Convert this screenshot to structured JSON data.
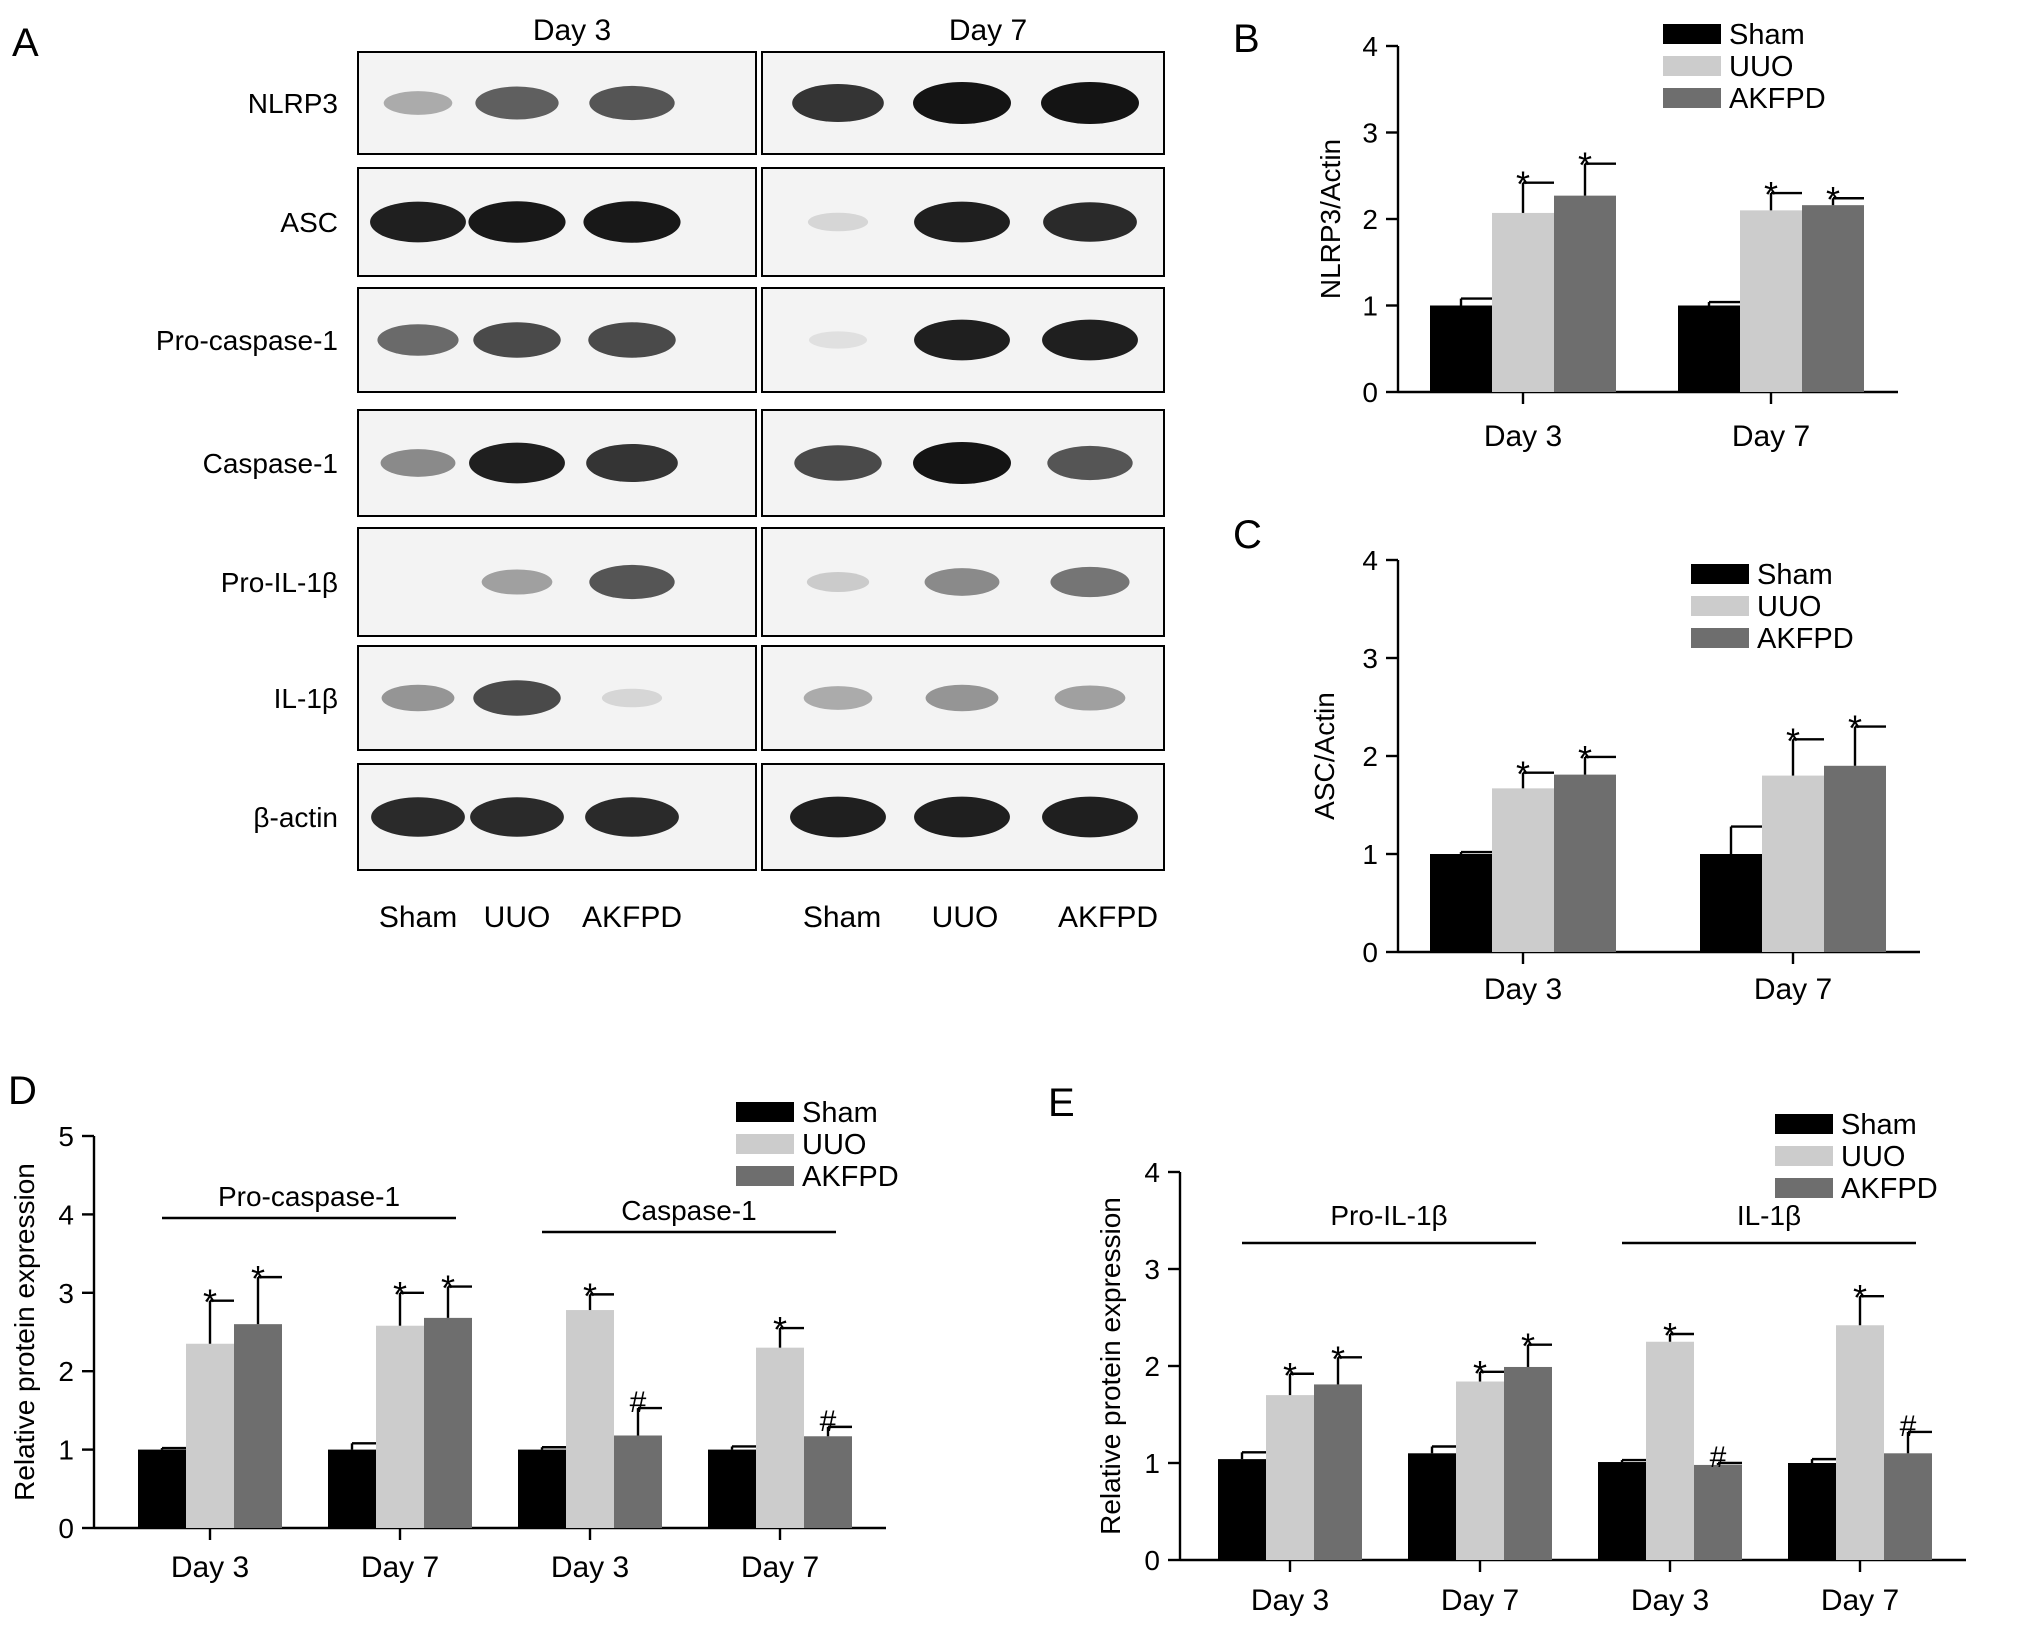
{
  "panels": {
    "a": {
      "letter": "A",
      "day_labels": [
        "Day 3",
        "Day 7"
      ],
      "rows": [
        "NLRP3",
        "ASC",
        "Pro-caspase-1",
        "Caspase-1",
        "Pro-IL-1β",
        "IL-1β",
        "β-actin"
      ],
      "lanes": [
        "Sham",
        "UUO",
        "AKFPD",
        "Sham",
        "UUO",
        "AKFPD"
      ],
      "band_intensity": [
        [
          0.3,
          0.65,
          0.7,
          0.85,
          1.0,
          1.0
        ],
        [
          0.95,
          0.98,
          0.98,
          0.1,
          0.95,
          0.9
        ],
        [
          0.6,
          0.75,
          0.75,
          0.05,
          0.95,
          0.95
        ],
        [
          0.45,
          0.95,
          0.85,
          0.75,
          1.0,
          0.7
        ],
        [
          0.0,
          0.35,
          0.7,
          0.15,
          0.45,
          0.55
        ],
        [
          0.4,
          0.75,
          0.1,
          0.3,
          0.4,
          0.35
        ],
        [
          0.9,
          0.9,
          0.9,
          0.95,
          0.95,
          0.95
        ]
      ]
    }
  },
  "chart_data": [
    {
      "id": "b",
      "letter": "B",
      "type": "bar",
      "ylabel": "NLRP3/Actin",
      "ylim": [
        0,
        4
      ],
      "yticks": [
        0,
        1,
        2,
        3,
        4
      ],
      "categories": [
        "Day 3",
        "Day 7"
      ],
      "series": [
        {
          "name": "Sham",
          "color": "#000000",
          "values": [
            1.0,
            1.0
          ],
          "errors": [
            0.08,
            0.04
          ],
          "marks": [
            "",
            ""
          ]
        },
        {
          "name": "UUO",
          "color": "#cccccc",
          "values": [
            2.07,
            2.1
          ],
          "errors": [
            0.35,
            0.2
          ],
          "marks": [
            "*",
            "*"
          ]
        },
        {
          "name": "AKFPD",
          "color": "#6e6e6e",
          "values": [
            2.27,
            2.16
          ],
          "errors": [
            0.37,
            0.08
          ],
          "marks": [
            "*",
            "*"
          ]
        }
      ],
      "legend": "top-right"
    },
    {
      "id": "c",
      "letter": "C",
      "type": "bar",
      "ylabel": "ASC/Actin",
      "ylim": [
        0,
        4
      ],
      "yticks": [
        0,
        1,
        2,
        3,
        4
      ],
      "categories": [
        "Day 3",
        "Day 7"
      ],
      "series": [
        {
          "name": "Sham",
          "color": "#000000",
          "values": [
            1.0,
            1.0
          ],
          "errors": [
            0.02,
            0.28
          ],
          "marks": [
            "",
            ""
          ]
        },
        {
          "name": "UUO",
          "color": "#cccccc",
          "values": [
            1.67,
            1.8
          ],
          "errors": [
            0.16,
            0.37
          ],
          "marks": [
            "*",
            "*"
          ]
        },
        {
          "name": "AKFPD",
          "color": "#6e6e6e",
          "values": [
            1.81,
            1.9
          ],
          "errors": [
            0.18,
            0.4
          ],
          "marks": [
            "*",
            "*"
          ]
        }
      ],
      "legend": "top-right"
    },
    {
      "id": "d",
      "letter": "D",
      "type": "bar",
      "ylabel": "Relative protein expression",
      "ylim": [
        0,
        5
      ],
      "yticks": [
        0,
        1,
        2,
        3,
        4,
        5
      ],
      "categories": [
        "Day 3",
        "Day 7",
        "Day 3",
        "Day 7"
      ],
      "groups": [
        {
          "label": "Pro-caspase-1",
          "from": 0,
          "to": 1
        },
        {
          "label": "Caspase-1",
          "from": 2,
          "to": 3
        }
      ],
      "series": [
        {
          "name": "Sham",
          "color": "#000000",
          "values": [
            1.0,
            1.0,
            1.0,
            1.0
          ],
          "errors": [
            0.02,
            0.08,
            0.03,
            0.04
          ],
          "marks": [
            "",
            "",
            "",
            ""
          ]
        },
        {
          "name": "UUO",
          "color": "#cccccc",
          "values": [
            2.35,
            2.58,
            2.78,
            2.3
          ],
          "errors": [
            0.55,
            0.42,
            0.2,
            0.25
          ],
          "marks": [
            "*",
            "*",
            "*",
            "*"
          ]
        },
        {
          "name": "AKFPD",
          "color": "#6e6e6e",
          "values": [
            2.6,
            2.68,
            1.18,
            1.17
          ],
          "errors": [
            0.6,
            0.4,
            0.35,
            0.12
          ],
          "marks": [
            "*",
            "*",
            "#",
            "#"
          ]
        }
      ],
      "legend": "top-right"
    },
    {
      "id": "e",
      "letter": "E",
      "type": "bar",
      "ylabel": "Relative protein expression",
      "ylim": [
        0,
        4
      ],
      "yticks": [
        0,
        1,
        2,
        3,
        4
      ],
      "categories": [
        "Day 3",
        "Day 7",
        "Day 3",
        "Day 7"
      ],
      "groups": [
        {
          "label": "Pro-IL-1β",
          "from": 0,
          "to": 1
        },
        {
          "label": "IL-1β",
          "from": 2,
          "to": 3
        }
      ],
      "series": [
        {
          "name": "Sham",
          "color": "#000000",
          "values": [
            1.04,
            1.1,
            1.01,
            1.0
          ],
          "errors": [
            0.07,
            0.07,
            0.02,
            0.04
          ],
          "marks": [
            "",
            "",
            "",
            ""
          ]
        },
        {
          "name": "UUO",
          "color": "#cccccc",
          "values": [
            1.7,
            1.84,
            2.25,
            2.42
          ],
          "errors": [
            0.22,
            0.1,
            0.08,
            0.3
          ],
          "marks": [
            "*",
            "*",
            "*",
            "*"
          ]
        },
        {
          "name": "AKFPD",
          "color": "#6e6e6e",
          "values": [
            1.81,
            1.99,
            0.98,
            1.1
          ],
          "errors": [
            0.28,
            0.23,
            0.02,
            0.22
          ],
          "marks": [
            "*",
            "*",
            "#",
            "#"
          ]
        }
      ],
      "legend": "top-right"
    }
  ]
}
